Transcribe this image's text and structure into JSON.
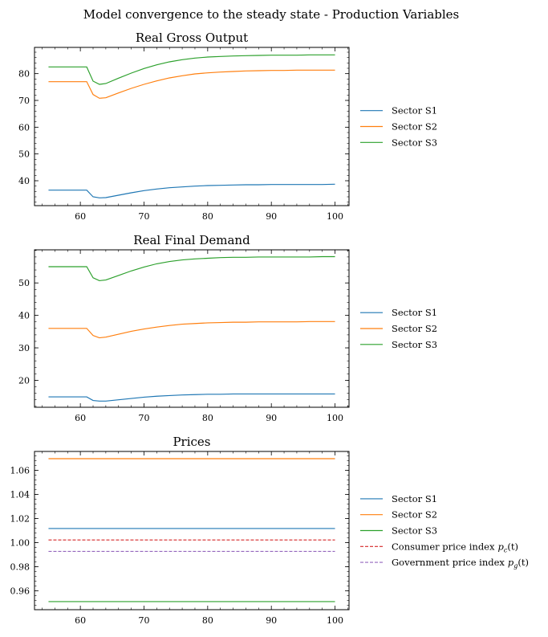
{
  "figure_title": "Model convergence to the steady state - Production Variables",
  "colors": {
    "s1": "#1f77b4",
    "s2": "#ff7f0e",
    "s3": "#2ca02c",
    "cpi": "#d62728",
    "gpi": "#9467bd"
  },
  "chart_data": [
    {
      "type": "line",
      "title": "Real Gross Output",
      "xlabel": "",
      "ylabel": "",
      "xlim": [
        52.8,
        102.2
      ],
      "ylim": [
        30.7,
        89.8
      ],
      "xticks": [
        60,
        70,
        80,
        90,
        100
      ],
      "yticks": [
        40,
        50,
        60,
        70,
        80
      ],
      "ytick_labels": [
        "40",
        "50",
        "60",
        "70",
        "80"
      ],
      "legend_position": "right",
      "series": [
        {
          "name": "Sector S1",
          "color": "#1f77b4",
          "dash": "solid",
          "x": [
            55,
            61,
            62,
            63,
            64,
            66,
            68,
            70,
            72,
            74,
            76,
            78,
            80,
            82,
            84,
            86,
            88,
            90,
            92,
            94,
            96,
            98,
            100
          ],
          "y": [
            36.5,
            36.5,
            34.0,
            33.6,
            33.7,
            34.6,
            35.5,
            36.3,
            36.9,
            37.4,
            37.7,
            38.0,
            38.2,
            38.3,
            38.4,
            38.5,
            38.5,
            38.6,
            38.6,
            38.6,
            38.6,
            38.6,
            38.7
          ]
        },
        {
          "name": "Sector S2",
          "color": "#ff7f0e",
          "dash": "solid",
          "x": [
            55,
            61,
            62,
            63,
            64,
            66,
            68,
            70,
            72,
            74,
            76,
            78,
            80,
            82,
            84,
            86,
            88,
            90,
            92,
            94,
            96,
            98,
            100
          ],
          "y": [
            77.0,
            77.0,
            72.2,
            70.8,
            71.0,
            72.8,
            74.5,
            76.0,
            77.3,
            78.4,
            79.2,
            79.9,
            80.3,
            80.6,
            80.8,
            81.0,
            81.1,
            81.2,
            81.2,
            81.3,
            81.3,
            81.3,
            81.3
          ]
        },
        {
          "name": "Sector S3",
          "color": "#2ca02c",
          "dash": "solid",
          "x": [
            55,
            61,
            62,
            63,
            64,
            66,
            68,
            70,
            72,
            74,
            76,
            78,
            80,
            82,
            84,
            86,
            88,
            90,
            92,
            94,
            96,
            98,
            100
          ],
          "y": [
            82.5,
            82.5,
            77.2,
            76.0,
            76.3,
            78.3,
            80.2,
            81.9,
            83.3,
            84.4,
            85.2,
            85.8,
            86.2,
            86.4,
            86.6,
            86.7,
            86.8,
            86.9,
            86.9,
            86.9,
            87.0,
            87.0,
            87.0
          ]
        }
      ]
    },
    {
      "type": "line",
      "title": "Real Final Demand",
      "xlabel": "",
      "ylabel": "",
      "xlim": [
        52.8,
        102.2
      ],
      "ylim": [
        11.7,
        60.2
      ],
      "xticks": [
        60,
        70,
        80,
        90,
        100
      ],
      "yticks": [
        20,
        30,
        40,
        50
      ],
      "ytick_labels": [
        "20",
        "30",
        "40",
        "50"
      ],
      "legend_position": "right",
      "series": [
        {
          "name": "Sector S1",
          "color": "#1f77b4",
          "dash": "solid",
          "x": [
            55,
            61,
            62,
            63,
            64,
            66,
            68,
            70,
            72,
            74,
            76,
            78,
            80,
            82,
            84,
            86,
            88,
            90,
            92,
            94,
            96,
            98,
            100
          ],
          "y": [
            14.9,
            14.9,
            13.8,
            13.6,
            13.6,
            14.0,
            14.4,
            14.8,
            15.1,
            15.3,
            15.5,
            15.6,
            15.7,
            15.7,
            15.8,
            15.8,
            15.8,
            15.8,
            15.8,
            15.8,
            15.8,
            15.8,
            15.8
          ]
        },
        {
          "name": "Sector S2",
          "color": "#ff7f0e",
          "dash": "solid",
          "x": [
            55,
            61,
            62,
            63,
            64,
            66,
            68,
            70,
            72,
            74,
            76,
            78,
            80,
            82,
            84,
            86,
            88,
            90,
            92,
            94,
            96,
            98,
            100
          ],
          "y": [
            36.0,
            36.0,
            33.8,
            33.1,
            33.3,
            34.2,
            35.1,
            35.8,
            36.4,
            36.9,
            37.3,
            37.5,
            37.7,
            37.8,
            37.9,
            37.9,
            38.0,
            38.0,
            38.0,
            38.0,
            38.1,
            38.1,
            38.1
          ]
        },
        {
          "name": "Sector S3",
          "color": "#2ca02c",
          "dash": "solid",
          "x": [
            55,
            61,
            62,
            63,
            64,
            66,
            68,
            70,
            72,
            74,
            76,
            78,
            80,
            82,
            84,
            86,
            88,
            90,
            92,
            94,
            96,
            98,
            100
          ],
          "y": [
            55.0,
            55.0,
            51.6,
            50.7,
            50.9,
            52.3,
            53.7,
            54.9,
            55.9,
            56.6,
            57.1,
            57.4,
            57.6,
            57.8,
            57.9,
            57.9,
            58.0,
            58.0,
            58.0,
            58.0,
            58.0,
            58.1,
            58.1
          ]
        }
      ]
    },
    {
      "type": "line",
      "title": "Prices",
      "xlabel": "",
      "ylabel": "",
      "xlim": [
        52.8,
        102.2
      ],
      "ylim": [
        0.9444,
        1.0756
      ],
      "xticks": [
        60,
        70,
        80,
        90,
        100
      ],
      "yticks": [
        0.96,
        0.98,
        1.0,
        1.02,
        1.04,
        1.06
      ],
      "ytick_labels": [
        "0.96",
        "0.98",
        "1.00",
        "1.02",
        "1.04",
        "1.06"
      ],
      "legend_position": "right",
      "series": [
        {
          "name": "Sector S1",
          "color": "#1f77b4",
          "dash": "solid",
          "x": [
            55,
            100
          ],
          "y": [
            1.0117,
            1.0117
          ]
        },
        {
          "name": "Sector S2",
          "color": "#ff7f0e",
          "dash": "solid",
          "x": [
            55,
            100
          ],
          "y": [
            1.0696,
            1.0696
          ]
        },
        {
          "name": "Sector S3",
          "color": "#2ca02c",
          "dash": "solid",
          "x": [
            55,
            100
          ],
          "y": [
            0.9511,
            0.9511
          ]
        },
        {
          "name": "Consumer price index",
          "legend_symbol": "p",
          "legend_subscript": "c",
          "legend_arg": "(t)",
          "color": "#d62728",
          "dash": "dashed",
          "x": [
            55,
            100
          ],
          "y": [
            1.0022,
            1.0022
          ]
        },
        {
          "name": "Government price index",
          "legend_symbol": "p",
          "legend_subscript": "g",
          "legend_arg": "(t)",
          "color": "#9467bd",
          "dash": "dashed",
          "x": [
            55,
            100
          ],
          "y": [
            0.9927,
            0.9927
          ]
        }
      ]
    }
  ]
}
